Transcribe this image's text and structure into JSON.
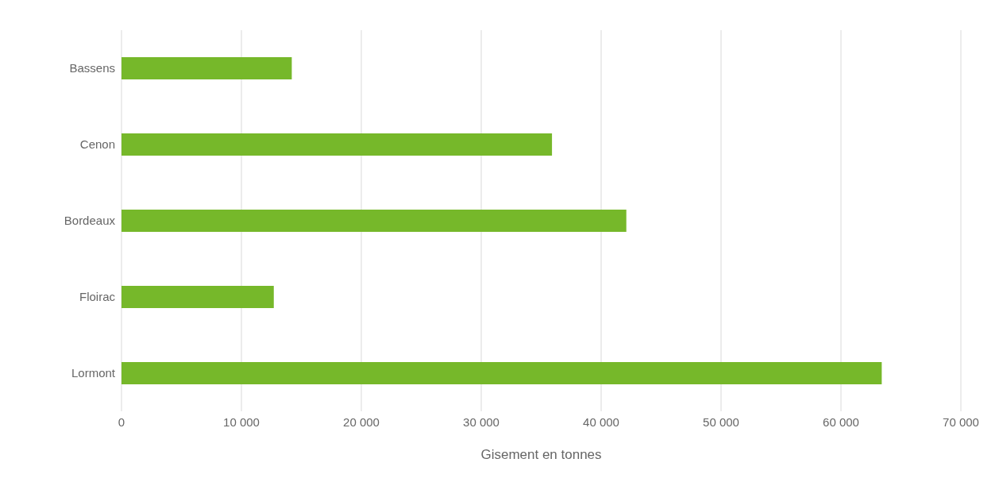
{
  "chart_data": {
    "type": "bar",
    "orientation": "horizontal",
    "xlabel": "Gisement en tonnes",
    "categories": [
      "Bassens",
      "Cenon",
      "Bordeaux",
      "Floirac",
      "Lormont"
    ],
    "values": [
      14200,
      35900,
      42100,
      12700,
      63400
    ],
    "color": "#76b82a",
    "xlim": [
      0,
      70000
    ],
    "xticks": [
      0,
      {
        "value": 10000,
        "label": "10 000"
      },
      {
        "value": 20000,
        "label": "20 000"
      },
      {
        "value": 30000,
        "label": "30 000"
      },
      {
        "value": 40000,
        "label": "40 000"
      },
      {
        "value": 50000,
        "label": "50 000"
      },
      {
        "value": 60000,
        "label": "60 000"
      },
      {
        "value": 70000,
        "label": "70 000"
      }
    ],
    "grid": "x"
  }
}
